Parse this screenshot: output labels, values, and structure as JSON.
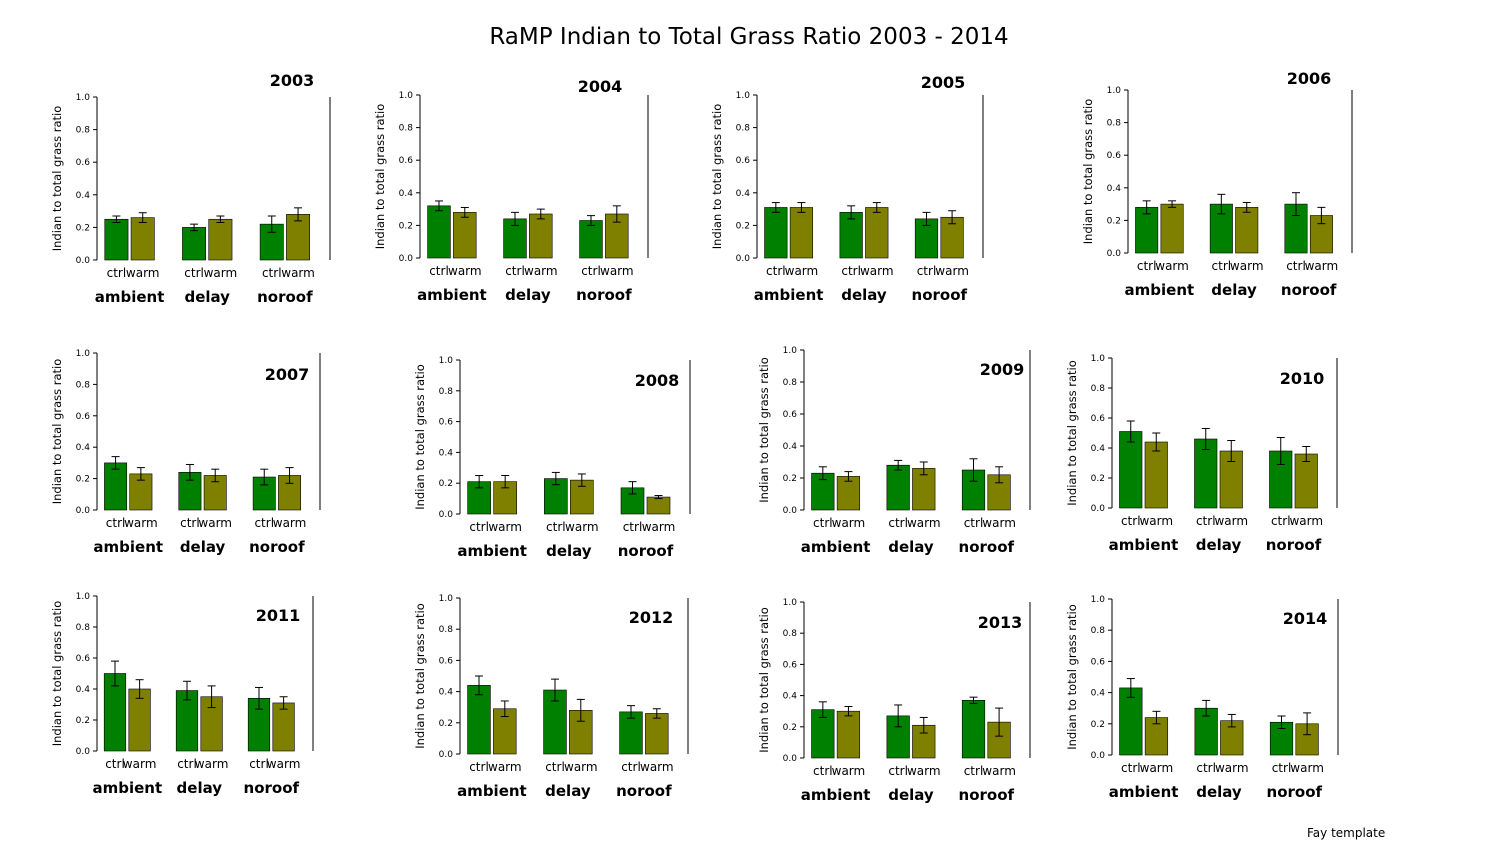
{
  "title": "RaMP Indian to Total Grass Ratio 2003 - 2014",
  "footer": "Fay template",
  "colors": {
    "ctrl": "#008000",
    "warm": "#808000"
  },
  "chart_data": [
    {
      "type": "bar",
      "title": "2003",
      "ylabel": "Indian to total grass ratio",
      "ylim": [
        0,
        1
      ],
      "yticks": [
        "0.0",
        "0.2",
        "0.4",
        "0.6",
        "0.8",
        "1.0"
      ],
      "groups": [
        "ambient",
        "delay",
        "noroof"
      ],
      "treatments": [
        "ctrl",
        "warm"
      ],
      "series": [
        {
          "name": "ctrl",
          "values": [
            0.25,
            0.2,
            0.22
          ],
          "errors": [
            0.02,
            0.02,
            0.05
          ]
        },
        {
          "name": "warm",
          "values": [
            0.26,
            0.25,
            0.28
          ],
          "errors": [
            0.03,
            0.02,
            0.04
          ]
        }
      ]
    },
    {
      "type": "bar",
      "title": "2004",
      "ylabel": "Indian to total grass ratio",
      "ylim": [
        0,
        1
      ],
      "yticks": [
        "0.0",
        "0.2",
        "0.4",
        "0.6",
        "0.8",
        "1.0"
      ],
      "groups": [
        "ambient",
        "delay",
        "noroof"
      ],
      "treatments": [
        "ctrl",
        "warm"
      ],
      "series": [
        {
          "name": "ctrl",
          "values": [
            0.32,
            0.24,
            0.23
          ],
          "errors": [
            0.03,
            0.04,
            0.03
          ]
        },
        {
          "name": "warm",
          "values": [
            0.28,
            0.27,
            0.27
          ],
          "errors": [
            0.03,
            0.03,
            0.05
          ]
        }
      ]
    },
    {
      "type": "bar",
      "title": "2005",
      "ylabel": "Indian to total grass ratio",
      "ylim": [
        0,
        1
      ],
      "yticks": [
        "0.0",
        "0.2",
        "0.4",
        "0.6",
        "0.8",
        "1.0"
      ],
      "groups": [
        "ambient",
        "delay",
        "noroof"
      ],
      "treatments": [
        "ctrl",
        "warm"
      ],
      "series": [
        {
          "name": "ctrl",
          "values": [
            0.31,
            0.28,
            0.24
          ],
          "errors": [
            0.03,
            0.04,
            0.04
          ]
        },
        {
          "name": "warm",
          "values": [
            0.31,
            0.31,
            0.25
          ],
          "errors": [
            0.03,
            0.03,
            0.04
          ]
        }
      ]
    },
    {
      "type": "bar",
      "title": "2006",
      "ylabel": "Indian to total grass ratio",
      "ylim": [
        0,
        1
      ],
      "yticks": [
        "0.0",
        "0.2",
        "0.4",
        "0.6",
        "0.8",
        "1.0"
      ],
      "groups": [
        "ambient",
        "delay",
        "noroof"
      ],
      "treatments": [
        "ctrl",
        "warm"
      ],
      "series": [
        {
          "name": "ctrl",
          "values": [
            0.28,
            0.3,
            0.3
          ],
          "errors": [
            0.04,
            0.06,
            0.07
          ]
        },
        {
          "name": "warm",
          "values": [
            0.3,
            0.28,
            0.23
          ],
          "errors": [
            0.02,
            0.03,
            0.05
          ]
        }
      ]
    },
    {
      "type": "bar",
      "title": "2007",
      "ylabel": "Indian to total grass ratio",
      "ylim": [
        0,
        1
      ],
      "yticks": [
        "0.0",
        "0.2",
        "0.4",
        "0.6",
        "0.8",
        "1.0"
      ],
      "groups": [
        "ambient",
        "delay",
        "noroof"
      ],
      "treatments": [
        "ctrl",
        "warm"
      ],
      "series": [
        {
          "name": "ctrl",
          "values": [
            0.3,
            0.24,
            0.21
          ],
          "errors": [
            0.04,
            0.05,
            0.05
          ]
        },
        {
          "name": "warm",
          "values": [
            0.23,
            0.22,
            0.22
          ],
          "errors": [
            0.04,
            0.04,
            0.05
          ]
        }
      ]
    },
    {
      "type": "bar",
      "title": "2008",
      "ylabel": "Indian to total grass ratio",
      "ylim": [
        0,
        1
      ],
      "yticks": [
        "0.0",
        "0.2",
        "0.4",
        "0.6",
        "0.8",
        "1.0"
      ],
      "groups": [
        "ambient",
        "delay",
        "noroof"
      ],
      "treatments": [
        "ctrl",
        "warm"
      ],
      "series": [
        {
          "name": "ctrl",
          "values": [
            0.21,
            0.23,
            0.17
          ],
          "errors": [
            0.04,
            0.04,
            0.04
          ]
        },
        {
          "name": "warm",
          "values": [
            0.21,
            0.22,
            0.11
          ],
          "errors": [
            0.04,
            0.04,
            0.01
          ]
        }
      ]
    },
    {
      "type": "bar",
      "title": "2009",
      "ylabel": "Indian to total grass ratio",
      "ylim": [
        0,
        1
      ],
      "yticks": [
        "0.0",
        "0.2",
        "0.4",
        "0.6",
        "0.8",
        "1.0"
      ],
      "groups": [
        "ambient",
        "delay",
        "noroof"
      ],
      "treatments": [
        "ctrl",
        "warm"
      ],
      "series": [
        {
          "name": "ctrl",
          "values": [
            0.23,
            0.28,
            0.25
          ],
          "errors": [
            0.04,
            0.03,
            0.07
          ]
        },
        {
          "name": "warm",
          "values": [
            0.21,
            0.26,
            0.22
          ],
          "errors": [
            0.03,
            0.04,
            0.05
          ]
        }
      ]
    },
    {
      "type": "bar",
      "title": "2010",
      "ylabel": "Indian to total grass ratio",
      "ylim": [
        0,
        1
      ],
      "yticks": [
        "0.0",
        "0.2",
        "0.4",
        "0.6",
        "0.8",
        "1.0"
      ],
      "groups": [
        "ambient",
        "delay",
        "noroof"
      ],
      "treatments": [
        "ctrl",
        "warm"
      ],
      "series": [
        {
          "name": "ctrl",
          "values": [
            0.51,
            0.46,
            0.38
          ],
          "errors": [
            0.07,
            0.07,
            0.09
          ]
        },
        {
          "name": "warm",
          "values": [
            0.44,
            0.38,
            0.36
          ],
          "errors": [
            0.06,
            0.07,
            0.05
          ]
        }
      ]
    },
    {
      "type": "bar",
      "title": "2011",
      "ylabel": "Indian to total grass ratio",
      "ylim": [
        0,
        1
      ],
      "yticks": [
        "0.0",
        "0.2",
        "0.4",
        "0.6",
        "0.8",
        "1.0"
      ],
      "groups": [
        "ambient",
        "delay",
        "noroof"
      ],
      "treatments": [
        "ctrl",
        "warm"
      ],
      "series": [
        {
          "name": "ctrl",
          "values": [
            0.5,
            0.39,
            0.34
          ],
          "errors": [
            0.08,
            0.06,
            0.07
          ]
        },
        {
          "name": "warm",
          "values": [
            0.4,
            0.35,
            0.31
          ],
          "errors": [
            0.06,
            0.07,
            0.04
          ]
        }
      ]
    },
    {
      "type": "bar",
      "title": "2012",
      "ylabel": "Indian to total grass ratio",
      "ylim": [
        0,
        1
      ],
      "yticks": [
        "0.0",
        "0.2",
        "0.4",
        "0.6",
        "0.8",
        "1.0"
      ],
      "groups": [
        "ambient",
        "delay",
        "noroof"
      ],
      "treatments": [
        "ctrl",
        "warm"
      ],
      "series": [
        {
          "name": "ctrl",
          "values": [
            0.44,
            0.41,
            0.27
          ],
          "errors": [
            0.06,
            0.07,
            0.04
          ]
        },
        {
          "name": "warm",
          "values": [
            0.29,
            0.28,
            0.26
          ],
          "errors": [
            0.05,
            0.07,
            0.03
          ]
        }
      ]
    },
    {
      "type": "bar",
      "title": "2013",
      "ylabel": "Indian to total grass ratio",
      "ylim": [
        0,
        1
      ],
      "yticks": [
        "0.0",
        "0.2",
        "0.4",
        "0.6",
        "0.8",
        "1.0"
      ],
      "groups": [
        "ambient",
        "delay",
        "noroof"
      ],
      "treatments": [
        "ctrl",
        "warm"
      ],
      "series": [
        {
          "name": "ctrl",
          "values": [
            0.31,
            0.27,
            0.37
          ],
          "errors": [
            0.05,
            0.07,
            0.02
          ]
        },
        {
          "name": "warm",
          "values": [
            0.3,
            0.21,
            0.23
          ],
          "errors": [
            0.03,
            0.05,
            0.09
          ]
        }
      ]
    },
    {
      "type": "bar",
      "title": "2014",
      "ylabel": "Indian to total grass ratio",
      "ylim": [
        0,
        1
      ],
      "yticks": [
        "0.0",
        "0.2",
        "0.4",
        "0.6",
        "0.8",
        "1.0"
      ],
      "groups": [
        "ambient",
        "delay",
        "noroof"
      ],
      "treatments": [
        "ctrl",
        "warm"
      ],
      "series": [
        {
          "name": "ctrl",
          "values": [
            0.43,
            0.3,
            0.21
          ],
          "errors": [
            0.06,
            0.05,
            0.04
          ]
        },
        {
          "name": "warm",
          "values": [
            0.24,
            0.22,
            0.2
          ],
          "errors": [
            0.04,
            0.04,
            0.07
          ]
        }
      ]
    }
  ]
}
